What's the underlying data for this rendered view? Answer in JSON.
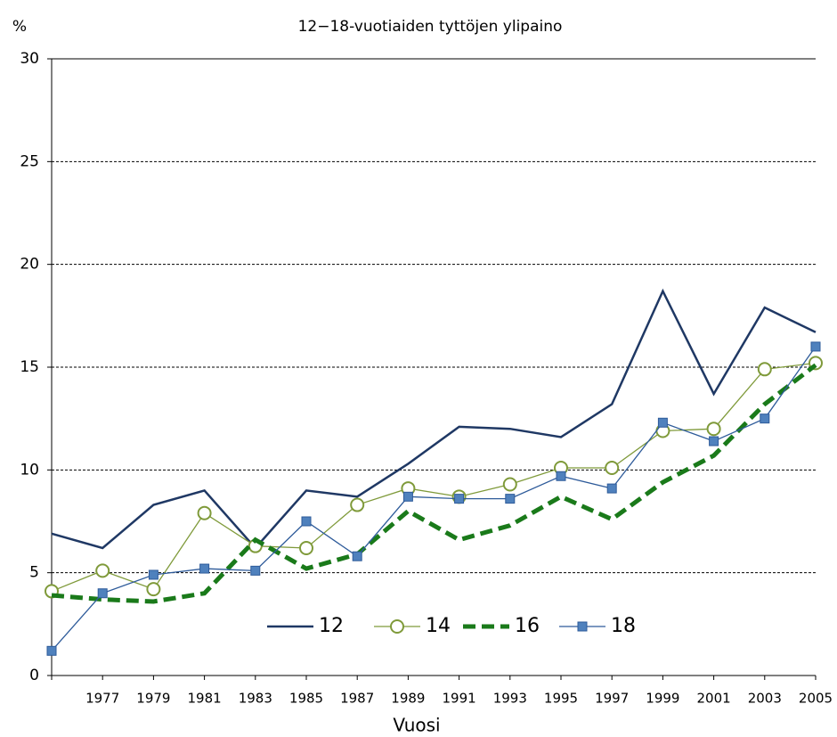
{
  "chart_data": {
    "type": "line",
    "title": "12−18-vuotiaiden tyttöjen ylipaino",
    "y_label": "%",
    "x_label": "Vuosi",
    "categories": [
      null,
      "1977",
      "1979",
      "1981",
      "1983",
      "1985",
      "1987",
      "1989",
      "1991",
      "1993",
      "1995",
      "1997",
      "1999",
      "2001",
      "2003",
      "2005"
    ],
    "ylim": [
      0,
      30
    ],
    "yticks": [
      0,
      5,
      10,
      15,
      20,
      25,
      30
    ],
    "grid": true,
    "legend": "bottom",
    "series": [
      {
        "name": "12",
        "color": "#1f3864",
        "marker": "none",
        "dashed": false,
        "values": [
          6.9,
          6.2,
          8.3,
          9.0,
          6.2,
          9.0,
          8.7,
          10.3,
          12.1,
          12.0,
          11.6,
          13.2,
          18.7,
          13.7,
          17.9,
          16.7
        ]
      },
      {
        "name": "14",
        "color": "#7f9a3a",
        "marker": "circle",
        "dashed": false,
        "values": [
          4.1,
          5.1,
          4.2,
          7.9,
          6.3,
          6.2,
          8.3,
          9.1,
          8.7,
          9.3,
          10.1,
          10.1,
          11.9,
          12.0,
          14.9,
          15.2
        ]
      },
      {
        "name": "16",
        "color": "#1a7a1a",
        "marker": "none",
        "dashed": true,
        "values": [
          3.9,
          3.7,
          3.6,
          4.0,
          6.6,
          5.2,
          5.9,
          8.0,
          6.6,
          7.3,
          8.7,
          7.6,
          9.4,
          10.7,
          13.2,
          15.1
        ]
      },
      {
        "name": "18",
        "color": "#2e5b9a",
        "marker": "square",
        "dashed": false,
        "values": [
          1.2,
          4.0,
          4.9,
          5.2,
          5.1,
          7.5,
          5.8,
          8.7,
          8.6,
          8.6,
          9.7,
          9.1,
          12.3,
          11.4,
          12.5,
          16.0
        ]
      }
    ]
  }
}
